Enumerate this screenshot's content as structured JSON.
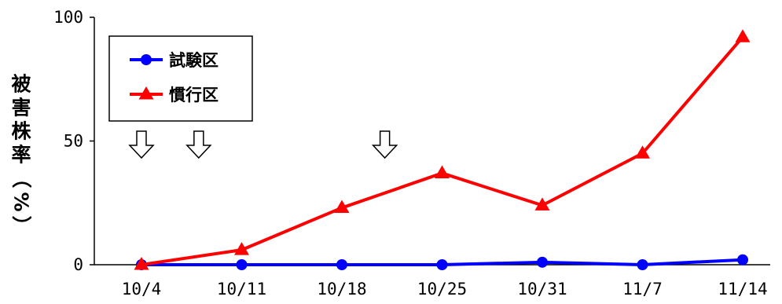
{
  "chart_data": {
    "type": "line",
    "categories": [
      "10/4",
      "10/11",
      "10/18",
      "10/25",
      "10/31",
      "11/7",
      "11/14"
    ],
    "ylabel": "被害株率（%）",
    "ylim": [
      0,
      100
    ],
    "yticks": [
      0,
      50,
      100
    ],
    "grid": false,
    "legend_position": "top-left",
    "series": [
      {
        "name": "試験区",
        "color": "#0000ff",
        "marker": "circle",
        "values": [
          0,
          0,
          0,
          0,
          1,
          0,
          2
        ]
      },
      {
        "name": "慣行区",
        "color": "#ff0000",
        "marker": "triangle",
        "values": [
          0,
          6,
          23,
          37,
          24,
          45,
          92
        ]
      }
    ],
    "annotations": {
      "marker": "down-arrow",
      "positions": [
        "10/4",
        "10/8",
        "10/21"
      ]
    }
  }
}
